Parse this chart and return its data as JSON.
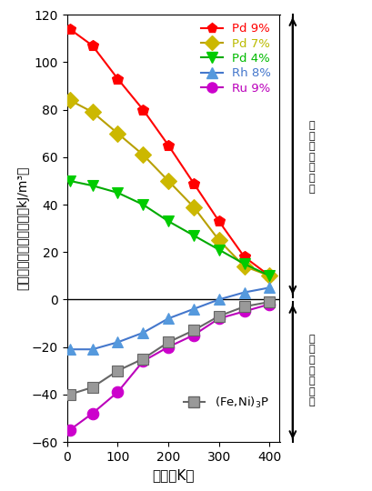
{
  "xlabel": "温度（K）",
  "ylabel": "磁気異方性エネルギー（kJ/m³）",
  "xlim": [
    0,
    420
  ],
  "ylim": [
    -60,
    120
  ],
  "xticks": [
    0,
    100,
    200,
    300,
    400
  ],
  "yticks": [
    -60,
    -40,
    -20,
    0,
    20,
    40,
    60,
    80,
    100,
    120
  ],
  "series": [
    {
      "label": "Pd 9%",
      "color": "#ff0000",
      "marker": "p",
      "markercolor": "#ff0000",
      "linestyle": "-",
      "x": [
        5,
        50,
        100,
        150,
        200,
        250,
        300,
        350,
        400
      ],
      "y": [
        114,
        107,
        93,
        80,
        65,
        49,
        33,
        18,
        10
      ]
    },
    {
      "label": "Pd 7%",
      "color": "#b8a000",
      "marker": "D",
      "markercolor": "#ccb800",
      "linestyle": "-",
      "x": [
        5,
        50,
        100,
        150,
        200,
        250,
        300,
        350,
        400
      ],
      "y": [
        84,
        79,
        70,
        61,
        50,
        39,
        25,
        14,
        10
      ]
    },
    {
      "label": "Pd 4%",
      "color": "#00aa00",
      "marker": "v",
      "markercolor": "#00cc00",
      "linestyle": "-",
      "x": [
        5,
        50,
        100,
        150,
        200,
        250,
        300,
        350,
        400
      ],
      "y": [
        50,
        48,
        45,
        40,
        33,
        27,
        21,
        15,
        10
      ]
    },
    {
      "label": "Rh 8%",
      "color": "#4477cc",
      "marker": "^",
      "markercolor": "#5599dd",
      "linestyle": "-",
      "x": [
        5,
        50,
        100,
        150,
        200,
        250,
        300,
        350,
        400
      ],
      "y": [
        -21,
        -21,
        -18,
        -14,
        -8,
        -4,
        0,
        3,
        5
      ]
    },
    {
      "label": "Ru 9%",
      "color": "#bb00bb",
      "marker": "o",
      "markercolor": "#cc00cc",
      "linestyle": "-",
      "x": [
        5,
        50,
        100,
        150,
        200,
        250,
        300,
        350,
        400
      ],
      "y": [
        -55,
        -48,
        -39,
        -26,
        -20,
        -15,
        -8,
        -5,
        -2
      ]
    },
    {
      "label": "(Fe,Ni)$_3$P",
      "color": "#666666",
      "marker": "s",
      "markercolor": "#999999",
      "linestyle": "-",
      "x": [
        5,
        50,
        100,
        150,
        200,
        250,
        300,
        350,
        400
      ],
      "y": [
        -40,
        -37,
        -30,
        -25,
        -18,
        -13,
        -7,
        -3,
        -1
      ]
    }
  ],
  "legend_labels": [
    "Pd 9%",
    "Pd 7%",
    "Pd 4%",
    "Rh 8%",
    "Ru 9%"
  ],
  "legend_colors": [
    "#ff0000",
    "#b8a000",
    "#00aa00",
    "#4477cc",
    "#bb00bb"
  ],
  "legend_mcolors": [
    "#ff0000",
    "#ccb800",
    "#00cc00",
    "#5599dd",
    "#cc00cc"
  ],
  "legend_markers": [
    "p",
    "D",
    "v",
    "^",
    "o"
  ],
  "legend_text_colors": [
    "#ff0000",
    "#bbbb00",
    "#00bb00",
    "#4477cc",
    "#bb00bb"
  ],
  "upper_text": "磁\n気\n異\n方\n性\n促\n進",
  "lower_text": "磁\n気\n回\n転\n性\n促\n進"
}
